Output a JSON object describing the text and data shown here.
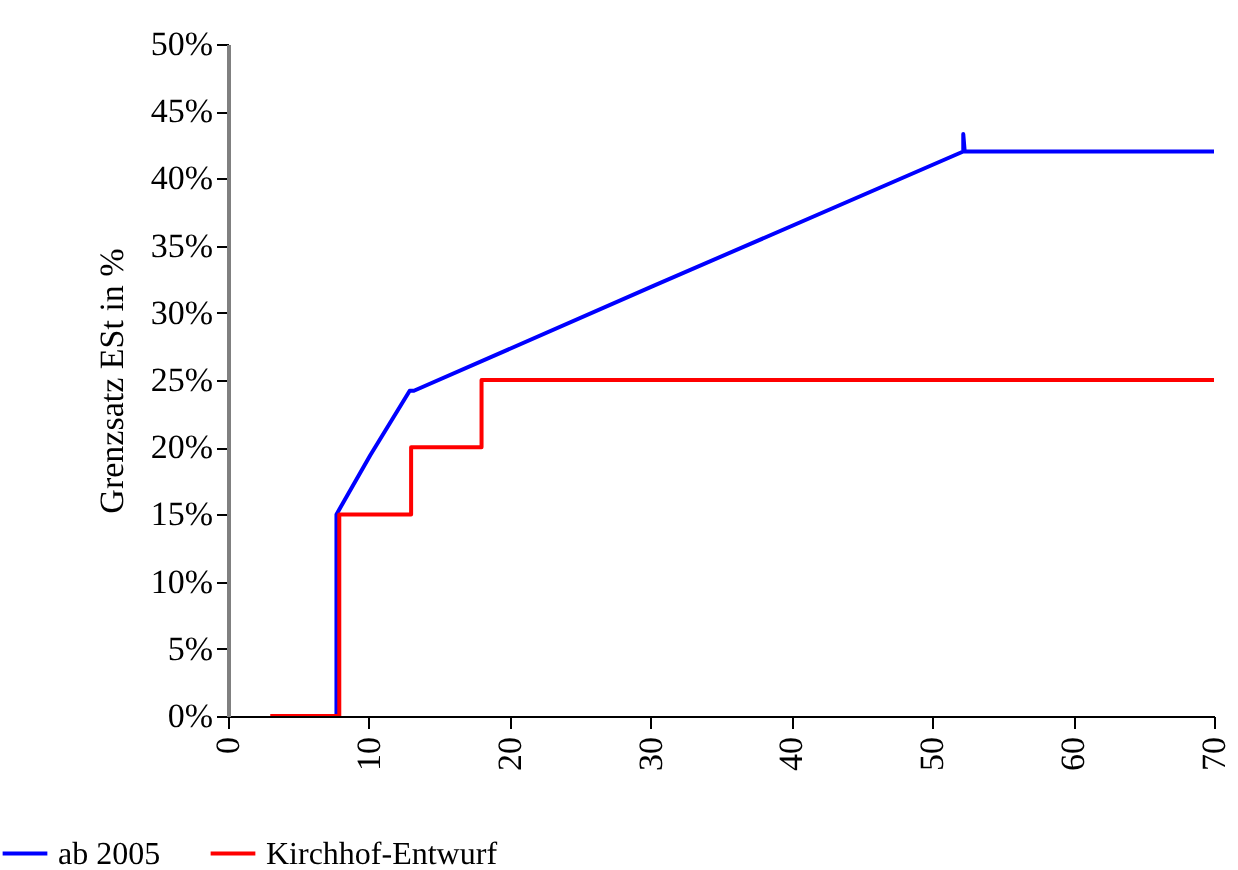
{
  "chart_data": {
    "type": "line",
    "ylabel": "Grenzsatz ESt in %",
    "xlim": [
      0,
      70
    ],
    "xticks": [
      0,
      10,
      20,
      30,
      40,
      50,
      60,
      70
    ],
    "ylim": [
      0,
      50
    ],
    "yticks": [
      {
        "value": 0,
        "label": "0%"
      },
      {
        "value": 5,
        "label": "5%"
      },
      {
        "value": 10,
        "label": "10%"
      },
      {
        "value": 15,
        "label": "15%"
      },
      {
        "value": 20,
        "label": "20%"
      },
      {
        "value": 25,
        "label": "25%"
      },
      {
        "value": 30,
        "label": "30%"
      },
      {
        "value": 35,
        "label": "35%"
      },
      {
        "value": 40,
        "label": "40%"
      },
      {
        "value": 45,
        "label": "45%"
      },
      {
        "value": 50,
        "label": "50%"
      }
    ],
    "grid": false,
    "legend": "bottom left",
    "marker": "none",
    "line_style": "solid",
    "series": [
      {
        "name": "ab 2005",
        "color": "#0000ff",
        "x": [
          7.7,
          7.7,
          10.1,
          12.9,
          13.2,
          30.2,
          52.2,
          52.2,
          52.3,
          70
        ],
        "values": [
          0,
          15,
          19.4,
          24.2,
          24.2,
          32,
          42,
          43.3,
          42,
          42
        ]
      },
      {
        "name": "Kirchhof-Entwurf",
        "color": "#ff0000",
        "x": [
          3,
          7.9,
          7.9,
          13,
          13,
          18,
          18,
          70
        ],
        "values": [
          0,
          0,
          15,
          15,
          20,
          20,
          25,
          25
        ]
      }
    ]
  }
}
